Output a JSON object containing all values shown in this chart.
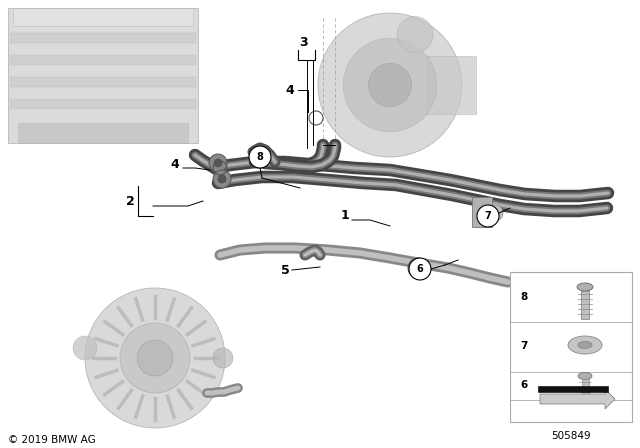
{
  "copyright": "© 2019 BMW AG",
  "part_number": "505849",
  "bg_color": "#ffffff",
  "fig_width": 6.4,
  "fig_height": 4.48,
  "dpi": 100,
  "ghost_color": "#d8d8d8",
  "ghost_edge": "#bbbbbb",
  "hose_dark_outer": "#4a4a4a",
  "hose_dark_mid": "#7a7a7a",
  "hose_dark_inner": "#aaaaaa",
  "hose_light_outer": "#999999",
  "hose_light_inner": "#cccccc",
  "label_fs": 8,
  "circ_label_fs": 7
}
